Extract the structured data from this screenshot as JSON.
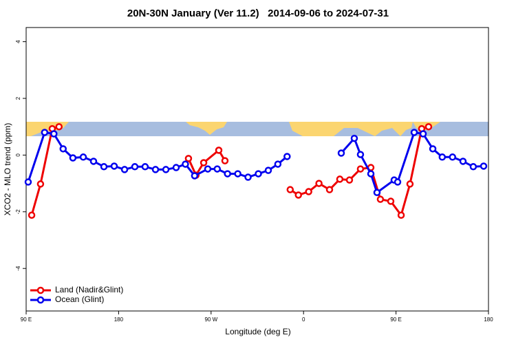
{
  "chart_data": {
    "type": "line",
    "title": "20N-30N January (Ver 11.2)   2014-09-06 to 2024-07-31",
    "x_label": "Longitude (deg E)",
    "y_label": "XCO2 - MLO trend (ppm)",
    "xlim": [
      90,
      540
    ],
    "xticks": [
      {
        "value": 90,
        "label": "90 E"
      },
      180,
      {
        "value": 270,
        "label": "90 W"
      },
      {
        "value": 360,
        "label": "0"
      },
      {
        "value": 450,
        "label": "90 E"
      },
      {
        "value": 540,
        "label": "180"
      }
    ],
    "ylim": [
      -5.5,
      4.5
    ],
    "yticks": [
      -4,
      -2,
      0,
      2,
      4
    ],
    "legend": "bottom-left",
    "series": [
      {
        "name": "Land (Nadir&Glint)",
        "color": "#ee0000",
        "x": [
          95.4,
          104,
          115.4,
          122,
          null,
          248,
          255.3,
          262.8,
          277.5,
          283.5,
          null,
          347,
          355,
          365,
          375,
          385.3,
          395.3,
          404.7,
          415.4,
          425.5,
          434.8,
          444.9,
          455,
          463.6,
          475,
          481.7
        ],
        "values": [
          -2.12,
          -1.02,
          0.93,
          1.0,
          null,
          -0.12,
          -0.71,
          -0.27,
          0.17,
          -0.2,
          null,
          -1.22,
          -1.41,
          -1.29,
          -1.0,
          -1.22,
          -0.85,
          -0.88,
          -0.49,
          -0.44,
          -1.56,
          -1.63,
          -2.12,
          -1.02,
          0.93,
          1.0
        ]
      },
      {
        "name": "Ocean (Glint)",
        "color": "#0000ee",
        "x": [
          92,
          108,
          117,
          126,
          135.5,
          145.6,
          155.6,
          165.7,
          175.7,
          185.8,
          195.8,
          205.8,
          215.9,
          226,
          236,
          245,
          254,
          266.8,
          276,
          286,
          296,
          306,
          316,
          325.7,
          335,
          344,
          null,
          396.7,
          409.4,
          415.4,
          425.5,
          431.5,
          448.2,
          451.6,
          467.7,
          476.4,
          485.8,
          495,
          505,
          515.2,
          525.2,
          535.3
        ],
        "values": [
          -0.95,
          0.8,
          0.75,
          0.22,
          -0.1,
          -0.07,
          -0.22,
          -0.41,
          -0.39,
          -0.51,
          -0.41,
          -0.41,
          -0.51,
          -0.51,
          -0.44,
          -0.32,
          -0.73,
          -0.49,
          -0.49,
          -0.66,
          -0.66,
          -0.78,
          -0.66,
          -0.54,
          -0.32,
          -0.05,
          null,
          0.07,
          0.59,
          0.02,
          -0.66,
          -1.32,
          -0.88,
          -0.95,
          0.8,
          0.75,
          0.22,
          -0.07,
          -0.07,
          -0.22,
          -0.41,
          -0.39
        ]
      }
    ]
  }
}
